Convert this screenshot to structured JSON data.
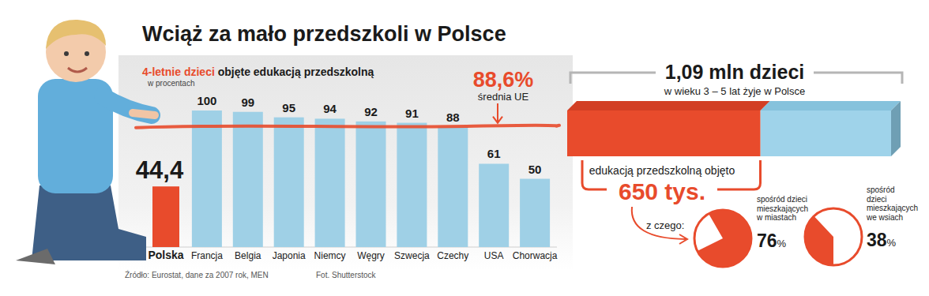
{
  "chart_data": [
    {
      "type": "bar",
      "title": "Wciąż za mało przedszkoli w Polsce",
      "subtitle": "4-letnie dzieci objęte edukacją przedszkolną",
      "ylabel": "w procentach",
      "categories": [
        "Polska",
        "Francja",
        "Belgia",
        "Japonia",
        "Niemcy",
        "Węgry",
        "Szwecja",
        "Czechy",
        "USA",
        "Chorwacja"
      ],
      "values": [
        44.4,
        100,
        99,
        95,
        94,
        92,
        91,
        88,
        61,
        50
      ],
      "value_labels": [
        "44,4",
        "100",
        "99",
        "95",
        "94",
        "92",
        "91",
        "88",
        "61",
        "50"
      ],
      "colors": [
        "#e84b2c",
        "#9fd0e6",
        "#9fd0e6",
        "#9fd0e6",
        "#9fd0e6",
        "#9fd0e6",
        "#9fd0e6",
        "#9fd0e6",
        "#9fd0e6",
        "#9fd0e6"
      ],
      "ylim": [
        0,
        100
      ],
      "data_labels": true,
      "tick_labels": "x",
      "annotations": [
        {
          "value": 88.6,
          "label": "88,6%",
          "text": "średnia UE"
        }
      ]
    },
    {
      "type": "bar",
      "orientation": "horizontal",
      "title": "1,09 mln dzieci",
      "subtitle": "w wieku 3 – 5 lat żyje w Polsce",
      "categories": [
        null
      ],
      "values": [
        650
      ],
      "value_labels": [
        "650 tys."
      ],
      "xlim": [
        0,
        1090
      ],
      "color": "#e84b2c",
      "data_labels": true,
      "tick_labels": false,
      "annotations": [
        "edukacją przedszkolną objęto",
        "z czego:"
      ]
    },
    {
      "type": "pie",
      "title": "spośród dzieci mieszkających w miastach",
      "values": [
        76
      ],
      "value_labels": [
        "76%"
      ],
      "color": "#e84b2c",
      "data_labels": true
    },
    {
      "type": "pie",
      "title": "spośród dzieci mieszkających we wsiach",
      "values": [
        38
      ],
      "value_labels": [
        "38%"
      ],
      "color": "#e84b2c",
      "data_labels": true
    }
  ],
  "source": "Źródło: Eurostat, dane za 2007 rok, MEN",
  "credit": "Fot. Shutterstock"
}
